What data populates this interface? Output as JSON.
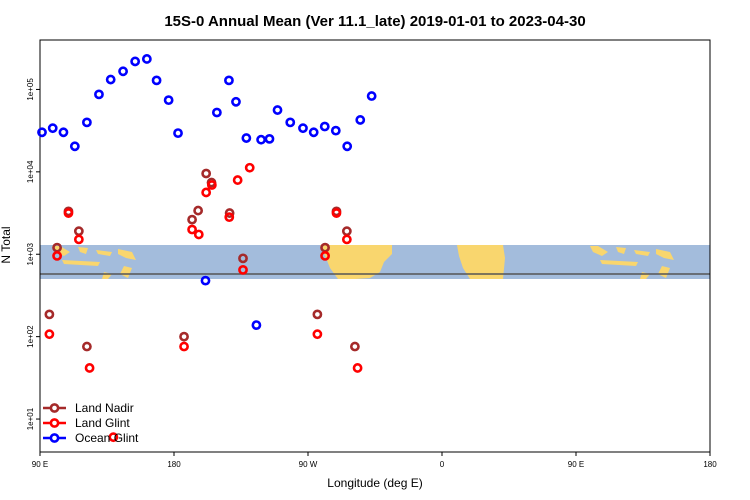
{
  "chart_data": {
    "type": "scatter",
    "title": "15S-0 Annual Mean (Ver 11.1_late)   2019-01-01 to 2023-04-30",
    "xlabel": "Longitude (deg E)",
    "ylabel": "N Total",
    "x_tick_labels": [
      "90 E",
      "180",
      "90 W",
      "0",
      "90 E",
      "180"
    ],
    "y_tick_labels": [
      "1e+01",
      "1e+02",
      "1e+03",
      "1e+04",
      "1e+05"
    ],
    "xlim_index": [
      0,
      20
    ],
    "ylim_log10": [
      0.6,
      5.6
    ],
    "colors": {
      "land_nadir": "#a52a2a",
      "land_glint": "#ff0000",
      "ocean_glint": "#0000ff",
      "ocean_band": "#a3bcdc",
      "land_band": "#f9d66e",
      "equator": "#555555"
    },
    "series": [
      {
        "name": "Land Nadir",
        "color": "#a52a2a",
        "points": [
          [
            0.28,
            2.27
          ],
          [
            0.51,
            3.08
          ],
          [
            0.85,
            3.52
          ],
          [
            1.16,
            3.28
          ],
          [
            1.4,
            1.88
          ],
          [
            4.3,
            2.0
          ],
          [
            4.54,
            3.42
          ],
          [
            4.72,
            3.53
          ],
          [
            4.96,
            3.98
          ],
          [
            5.12,
            3.87
          ],
          [
            5.66,
            3.5
          ],
          [
            6.06,
            2.95
          ],
          [
            8.28,
            2.27
          ],
          [
            8.51,
            3.08
          ],
          [
            8.85,
            3.52
          ],
          [
            9.16,
            3.28
          ],
          [
            9.4,
            1.88
          ]
        ]
      },
      {
        "name": "Land Glint",
        "color": "#ff0000",
        "points": [
          [
            0.28,
            2.03
          ],
          [
            0.51,
            2.98
          ],
          [
            0.85,
            3.5
          ],
          [
            1.16,
            3.18
          ],
          [
            1.48,
            1.62
          ],
          [
            2.19,
            0.78
          ],
          [
            4.3,
            1.88
          ],
          [
            4.54,
            3.3
          ],
          [
            4.74,
            3.24
          ],
          [
            4.96,
            3.75
          ],
          [
            5.13,
            3.84
          ],
          [
            5.65,
            3.45
          ],
          [
            5.9,
            3.9
          ],
          [
            6.26,
            4.05
          ],
          [
            6.06,
            2.81
          ],
          [
            8.28,
            2.03
          ],
          [
            8.51,
            2.98
          ],
          [
            8.85,
            3.5
          ],
          [
            9.16,
            3.18
          ],
          [
            9.48,
            1.62
          ]
        ]
      },
      {
        "name": "Ocean Glint",
        "color": "#0000ff",
        "points": [
          [
            0.06,
            4.48
          ],
          [
            0.38,
            4.53
          ],
          [
            0.7,
            4.48
          ],
          [
            1.04,
            4.31
          ],
          [
            1.4,
            4.6
          ],
          [
            1.76,
            4.94
          ],
          [
            2.11,
            5.12
          ],
          [
            2.48,
            5.22
          ],
          [
            2.84,
            5.34
          ],
          [
            3.19,
            5.37
          ],
          [
            3.48,
            5.11
          ],
          [
            3.84,
            4.87
          ],
          [
            4.12,
            4.47
          ],
          [
            4.94,
            2.68
          ],
          [
            5.28,
            4.72
          ],
          [
            5.64,
            5.11
          ],
          [
            5.85,
            4.85
          ],
          [
            6.16,
            4.41
          ],
          [
            6.6,
            4.39
          ],
          [
            6.46,
            2.14
          ],
          [
            6.85,
            4.4
          ],
          [
            7.09,
            4.75
          ],
          [
            7.47,
            4.6
          ],
          [
            7.85,
            4.53
          ],
          [
            8.17,
            4.48
          ],
          [
            8.5,
            4.55
          ],
          [
            8.83,
            4.5
          ],
          [
            9.17,
            4.31
          ],
          [
            9.56,
            4.63
          ],
          [
            9.9,
            4.92
          ]
        ]
      }
    ]
  }
}
